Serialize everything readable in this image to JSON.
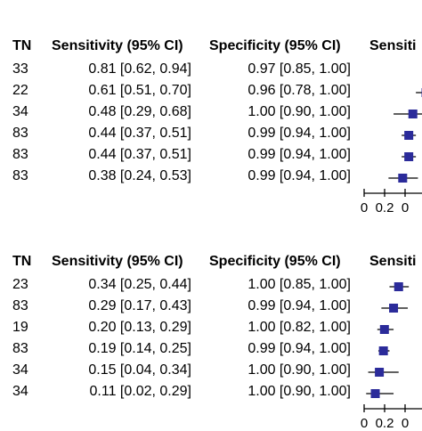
{
  "chart_data": [
    {
      "type": "table",
      "columns": [
        "TN",
        "Sensitivity (95% CI)",
        "Specificity (95% CI)",
        "Sensiti"
      ],
      "rows": [
        {
          "tn": "33",
          "sens": "0.81 [0.62, 0.94]",
          "spec": "0.97 [0.85, 1.00]",
          "estimate": 0.81,
          "lo": 0.62,
          "hi": 0.94
        },
        {
          "tn": "22",
          "sens": "0.61 [0.51, 0.70]",
          "spec": "0.96 [0.78, 1.00]",
          "estimate": 0.61,
          "lo": 0.51,
          "hi": 0.7
        },
        {
          "tn": "34",
          "sens": "0.48 [0.29, 0.68]",
          "spec": "1.00 [0.90, 1.00]",
          "estimate": 0.48,
          "lo": 0.29,
          "hi": 0.68
        },
        {
          "tn": "83",
          "sens": "0.44 [0.37, 0.51]",
          "spec": "0.99 [0.94, 1.00]",
          "estimate": 0.44,
          "lo": 0.37,
          "hi": 0.51
        },
        {
          "tn": "83",
          "sens": "0.44 [0.37, 0.51]",
          "spec": "0.99 [0.94, 1.00]",
          "estimate": 0.44,
          "lo": 0.37,
          "hi": 0.51
        },
        {
          "tn": "83",
          "sens": "0.38 [0.24, 0.53]",
          "spec": "0.99 [0.94, 1.00]",
          "estimate": 0.38,
          "lo": 0.24,
          "hi": 0.53
        }
      ],
      "xticks": [
        "0",
        "0.2",
        "0"
      ],
      "marker_color": "#2b2b9a"
    },
    {
      "type": "table",
      "columns": [
        "TN",
        "Sensitivity (95% CI)",
        "Specificity (95% CI)",
        "Sensiti"
      ],
      "rows": [
        {
          "tn": "23",
          "sens": "0.34 [0.25, 0.44]",
          "spec": "1.00 [0.85, 1.00]",
          "estimate": 0.34,
          "lo": 0.25,
          "hi": 0.44
        },
        {
          "tn": "83",
          "sens": "0.29 [0.17, 0.43]",
          "spec": "0.99 [0.94, 1.00]",
          "estimate": 0.29,
          "lo": 0.17,
          "hi": 0.43
        },
        {
          "tn": "19",
          "sens": "0.20 [0.13, 0.29]",
          "spec": "1.00 [0.82, 1.00]",
          "estimate": 0.2,
          "lo": 0.13,
          "hi": 0.29
        },
        {
          "tn": "83",
          "sens": "0.19 [0.14, 0.25]",
          "spec": "0.99 [0.94, 1.00]",
          "estimate": 0.19,
          "lo": 0.14,
          "hi": 0.25
        },
        {
          "tn": "34",
          "sens": "0.15 [0.04, 0.34]",
          "spec": "1.00 [0.90, 1.00]",
          "estimate": 0.15,
          "lo": 0.04,
          "hi": 0.34
        },
        {
          "tn": "34",
          "sens": "0.11 [0.02, 0.29]",
          "spec": "1.00 [0.90, 1.00]",
          "estimate": 0.11,
          "lo": 0.02,
          "hi": 0.29
        }
      ],
      "xticks": [
        "0",
        "0.2",
        "0"
      ],
      "marker_color": "#2b2b9a"
    }
  ]
}
